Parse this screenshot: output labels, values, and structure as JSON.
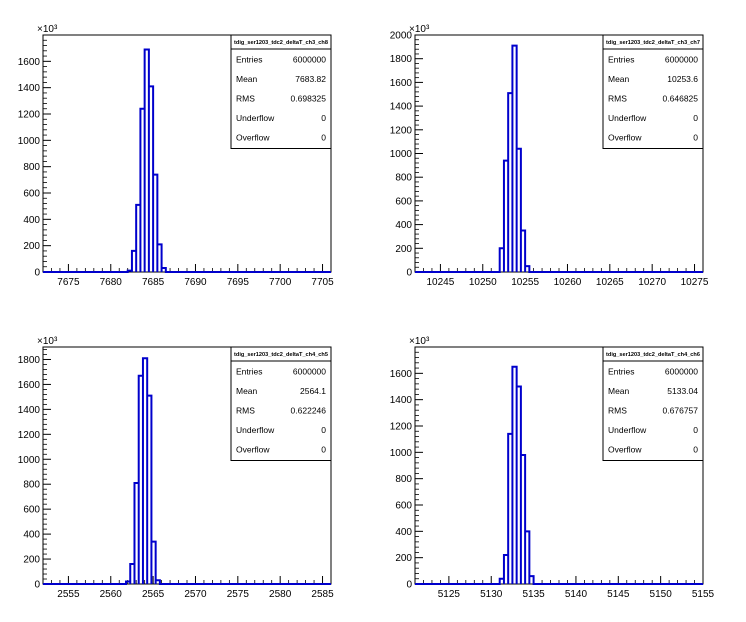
{
  "chart_data": [
    {
      "type": "histogram",
      "multiplier_label": "×10³",
      "xlim": [
        7672,
        7706
      ],
      "ylim": [
        0,
        1800
      ],
      "x_ticks": [
        7675,
        7680,
        7685,
        7690,
        7695,
        7700,
        7705
      ],
      "y_ticks": [
        0,
        200,
        400,
        600,
        800,
        1000,
        1200,
        1400,
        1600
      ],
      "bins": [
        {
          "x0": 7682,
          "x1": 7682.5,
          "y": 10
        },
        {
          "x0": 7682.5,
          "x1": 7683,
          "y": 160
        },
        {
          "x0": 7683,
          "x1": 7683.5,
          "y": 510
        },
        {
          "x0": 7683.5,
          "x1": 7684,
          "y": 1240
        },
        {
          "x0": 7684,
          "x1": 7684.5,
          "y": 1690
        },
        {
          "x0": 7684.5,
          "x1": 7685,
          "y": 1410
        },
        {
          "x0": 7685,
          "x1": 7685.5,
          "y": 740
        },
        {
          "x0": 7685.5,
          "x1": 7686,
          "y": 210
        },
        {
          "x0": 7686,
          "x1": 7686.5,
          "y": 30
        }
      ],
      "stats": {
        "title": "tdig_ser1203_tdc2_deltaT_ch3_ch8",
        "rows": [
          {
            "label": "Entries",
            "value": "6000000"
          },
          {
            "label": "Mean",
            "value": "7683.82"
          },
          {
            "label": "RMS",
            "value": "0.698325"
          },
          {
            "label": "Underflow",
            "value": "0"
          },
          {
            "label": "Overflow",
            "value": "0"
          }
        ]
      }
    },
    {
      "type": "histogram",
      "multiplier_label": "×10³",
      "xlim": [
        10242,
        10276
      ],
      "ylim": [
        0,
        2000
      ],
      "x_ticks": [
        10245,
        10250,
        10255,
        10260,
        10265,
        10270,
        10275
      ],
      "y_ticks": [
        0,
        200,
        400,
        600,
        800,
        1000,
        1200,
        1400,
        1600,
        1800,
        2000
      ],
      "bins": [
        {
          "x0": 10252,
          "x1": 10252.5,
          "y": 200
        },
        {
          "x0": 10252.5,
          "x1": 10253,
          "y": 940
        },
        {
          "x0": 10253,
          "x1": 10253.5,
          "y": 1510
        },
        {
          "x0": 10253.5,
          "x1": 10254,
          "y": 1910
        },
        {
          "x0": 10254,
          "x1": 10254.5,
          "y": 1040
        },
        {
          "x0": 10254.5,
          "x1": 10255,
          "y": 350
        },
        {
          "x0": 10255,
          "x1": 10255.5,
          "y": 50
        }
      ],
      "stats": {
        "title": "tdig_ser1203_tdc2_deltaT_ch3_ch7",
        "rows": [
          {
            "label": "Entries",
            "value": "6000000"
          },
          {
            "label": "Mean",
            "value": "10253.6"
          },
          {
            "label": "RMS",
            "value": "0.646825"
          },
          {
            "label": "Underflow",
            "value": "0"
          },
          {
            "label": "Overflow",
            "value": "0"
          }
        ]
      }
    },
    {
      "type": "histogram",
      "multiplier_label": "×10³",
      "xlim": [
        2552,
        2586
      ],
      "ylim": [
        0,
        1900
      ],
      "x_ticks": [
        2555,
        2560,
        2565,
        2570,
        2575,
        2580,
        2585
      ],
      "y_ticks": [
        0,
        200,
        400,
        600,
        800,
        1000,
        1200,
        1400,
        1600,
        1800
      ],
      "bins": [
        {
          "x0": 2561.8,
          "x1": 2562.3,
          "y": 20
        },
        {
          "x0": 2562.3,
          "x1": 2562.8,
          "y": 160
        },
        {
          "x0": 2562.8,
          "x1": 2563.3,
          "y": 810
        },
        {
          "x0": 2563.3,
          "x1": 2563.8,
          "y": 1670
        },
        {
          "x0": 2563.8,
          "x1": 2564.3,
          "y": 1810
        },
        {
          "x0": 2564.3,
          "x1": 2564.8,
          "y": 1510
        },
        {
          "x0": 2564.8,
          "x1": 2565.3,
          "y": 340
        },
        {
          "x0": 2565.3,
          "x1": 2565.8,
          "y": 30
        }
      ],
      "stats": {
        "title": "tdig_ser1203_tdc2_deltaT_ch4_ch5",
        "rows": [
          {
            "label": "Entries",
            "value": "6000000"
          },
          {
            "label": "Mean",
            "value": "2564.1"
          },
          {
            "label": "RMS",
            "value": "0.622246"
          },
          {
            "label": "Underflow",
            "value": "0"
          },
          {
            "label": "Overflow",
            "value": "0"
          }
        ]
      }
    },
    {
      "type": "histogram",
      "multiplier_label": "×10³",
      "xlim": [
        5121,
        5155
      ],
      "ylim": [
        0,
        1800
      ],
      "x_ticks": [
        5125,
        5130,
        5135,
        5140,
        5145,
        5150,
        5155
      ],
      "y_ticks": [
        0,
        200,
        400,
        600,
        800,
        1000,
        1200,
        1400,
        1600
      ],
      "bins": [
        {
          "x0": 5131,
          "x1": 5131.5,
          "y": 40
        },
        {
          "x0": 5131.5,
          "x1": 5132,
          "y": 220
        },
        {
          "x0": 5132,
          "x1": 5132.5,
          "y": 1140
        },
        {
          "x0": 5132.5,
          "x1": 5133,
          "y": 1650
        },
        {
          "x0": 5133,
          "x1": 5133.5,
          "y": 1500
        },
        {
          "x0": 5133.5,
          "x1": 5134,
          "y": 980
        },
        {
          "x0": 5134,
          "x1": 5134.5,
          "y": 400
        },
        {
          "x0": 5134.5,
          "x1": 5135,
          "y": 60
        }
      ],
      "stats": {
        "title": "tdig_ser1203_tdc2_deltaT_ch4_ch6",
        "rows": [
          {
            "label": "Entries",
            "value": "6000000"
          },
          {
            "label": "Mean",
            "value": "5133.04"
          },
          {
            "label": "RMS",
            "value": "0.676757"
          },
          {
            "label": "Underflow",
            "value": "0"
          },
          {
            "label": "Overflow",
            "value": "0"
          }
        ]
      }
    }
  ]
}
